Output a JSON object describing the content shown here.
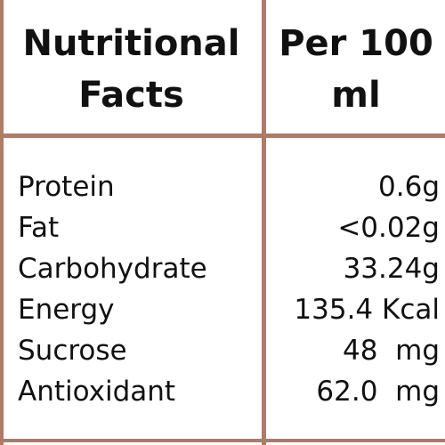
{
  "table": {
    "header": [
      "Nutritional Facts",
      "Per 100 ml"
    ],
    "rows": [
      [
        "Protein",
        "0.6g"
      ],
      [
        "Fat",
        "<0.02g"
      ],
      [
        "Carbohydrate",
        "33.24g"
      ],
      [
        "Energy",
        "135.4 Kcal"
      ],
      [
        "Sucrose",
        "48  mg"
      ],
      [
        "Antioxidant",
        "62.0  mg"
      ]
    ]
  }
}
